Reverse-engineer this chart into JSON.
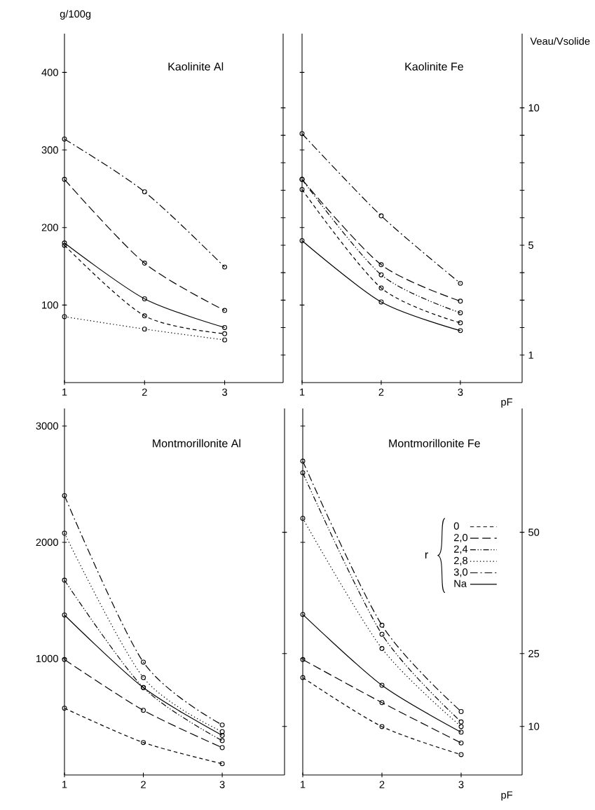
{
  "chart_data": [
    {
      "type": "line",
      "title": "Kaolinite Al",
      "ylabel": "g/100g",
      "x": [
        1,
        2,
        3
      ],
      "xlim": [
        1,
        3.73
      ],
      "xticks": [
        1,
        2,
        3
      ],
      "ylim": [
        0,
        450
      ],
      "yticks": [
        100,
        200,
        300,
        400
      ],
      "y2lim": [
        0,
        12.7
      ],
      "tick_labels": [
        "x",
        "y"
      ],
      "marker": "circle",
      "series": [
        {
          "color": "#000000",
          "line_style": "dashed",
          "values": [
            177,
            86,
            63
          ]
        },
        {
          "color": "#000000",
          "line_style": "long dashed",
          "values": [
            262,
            154,
            93
          ]
        },
        {
          "color": "#000000",
          "line_style": "dotted",
          "values": [
            85,
            69,
            55
          ]
        },
        {
          "color": "#000000",
          "line_style": "dash dot",
          "values": [
            314,
            246,
            149
          ]
        },
        {
          "color": "#000000",
          "line_style": "solid",
          "values": [
            180,
            108,
            71
          ]
        }
      ]
    },
    {
      "type": "line",
      "title": "Kaolinite Fe",
      "xlabel": "pF",
      "y2label": "Veau/Vsolide",
      "x": [
        1,
        2,
        3
      ],
      "xlim": [
        1,
        3.78
      ],
      "xticks": [
        1,
        2,
        3
      ],
      "ylim": [
        0,
        450
      ],
      "y2lim": [
        0,
        12.7
      ],
      "y2ticks": [
        {
          "value": 1,
          "label": "1"
        },
        {
          "value": 2,
          "label": null
        },
        {
          "value": 3,
          "label": null
        },
        {
          "value": 4,
          "label": null
        },
        {
          "value": 5,
          "label": "5"
        },
        {
          "value": 6,
          "label": null
        },
        {
          "value": 7,
          "label": null
        },
        {
          "value": 8,
          "label": null
        },
        {
          "value": 9,
          "label": null
        },
        {
          "value": 10,
          "label": "10"
        }
      ],
      "tick_labels": [
        "x",
        "y2"
      ],
      "marker": "circle",
      "series": [
        {
          "color": "#000000",
          "line_style": "dashed",
          "values": [
            249,
            122,
            77
          ]
        },
        {
          "color": "#000000",
          "line_style": "long dashed",
          "values": [
            262,
            152,
            105
          ]
        },
        {
          "color": "#000000",
          "line_style": "dash dot dot",
          "values": [
            262,
            139,
            90
          ]
        },
        {
          "color": "#000000",
          "line_style": "dash dot",
          "values": [
            321,
            215,
            128
          ]
        },
        {
          "color": "#000000",
          "line_style": "solid",
          "values": [
            183,
            104,
            67
          ]
        }
      ]
    },
    {
      "type": "line",
      "title": "Montmorillonite Al",
      "x": [
        1,
        2,
        3
      ],
      "xlim": [
        1,
        3.79
      ],
      "xticks": [
        1,
        2,
        3
      ],
      "ylim": [
        0,
        3150
      ],
      "yticks": [
        1000,
        2000,
        3000
      ],
      "y2lim": [
        0,
        75.5
      ],
      "tick_labels": [
        "x",
        "y"
      ],
      "marker": "circle",
      "series": [
        {
          "color": "#000000",
          "line_style": "dashed",
          "values": [
            574,
            279,
            97
          ]
        },
        {
          "color": "#000000",
          "line_style": "long dashed",
          "values": [
            992,
            556,
            235
          ]
        },
        {
          "color": "#000000",
          "line_style": "dash dot dot",
          "values": [
            1674,
            751,
            295
          ]
        },
        {
          "color": "#000000",
          "line_style": "dotted",
          "values": [
            2078,
            837,
            372
          ]
        },
        {
          "color": "#000000",
          "line_style": "dash dot",
          "values": [
            2401,
            970,
            430
          ]
        },
        {
          "color": "#000000",
          "line_style": "solid",
          "values": [
            1375,
            751,
            340
          ]
        }
      ]
    },
    {
      "type": "line",
      "title": "Montmorillonite Fe",
      "xlabel": "pF",
      "legend_title": "r",
      "legend": "right",
      "x": [
        1,
        2,
        3
      ],
      "xlim": [
        1,
        3.77
      ],
      "xticks": [
        1,
        2,
        3
      ],
      "ylim": [
        0,
        3150
      ],
      "y2lim": [
        0,
        75.5
      ],
      "y2ticks": [
        10,
        25,
        50
      ],
      "tick_labels": [
        "x",
        "y2"
      ],
      "marker": "circle",
      "series": [
        {
          "name": "0",
          "color": "#000000",
          "line_style": "dashed",
          "values": [
            837,
            416,
            175
          ]
        },
        {
          "name": "2,0",
          "color": "#000000",
          "line_style": "long dashed",
          "values": [
            992,
            622,
            275
          ]
        },
        {
          "name": "2,4",
          "color": "#000000",
          "line_style": "dash dot dot",
          "values": [
            2598,
            1209,
            456
          ]
        },
        {
          "name": "2,8",
          "color": "#000000",
          "line_style": "dotted",
          "values": [
            2206,
            1087,
            416
          ]
        },
        {
          "name": "3,0",
          "color": "#000000",
          "line_style": "dash dot",
          "values": [
            2698,
            1287,
            545
          ]
        },
        {
          "name": "Na",
          "color": "#000000",
          "line_style": "solid",
          "values": [
            1380,
            771,
            368
          ]
        }
      ]
    }
  ]
}
